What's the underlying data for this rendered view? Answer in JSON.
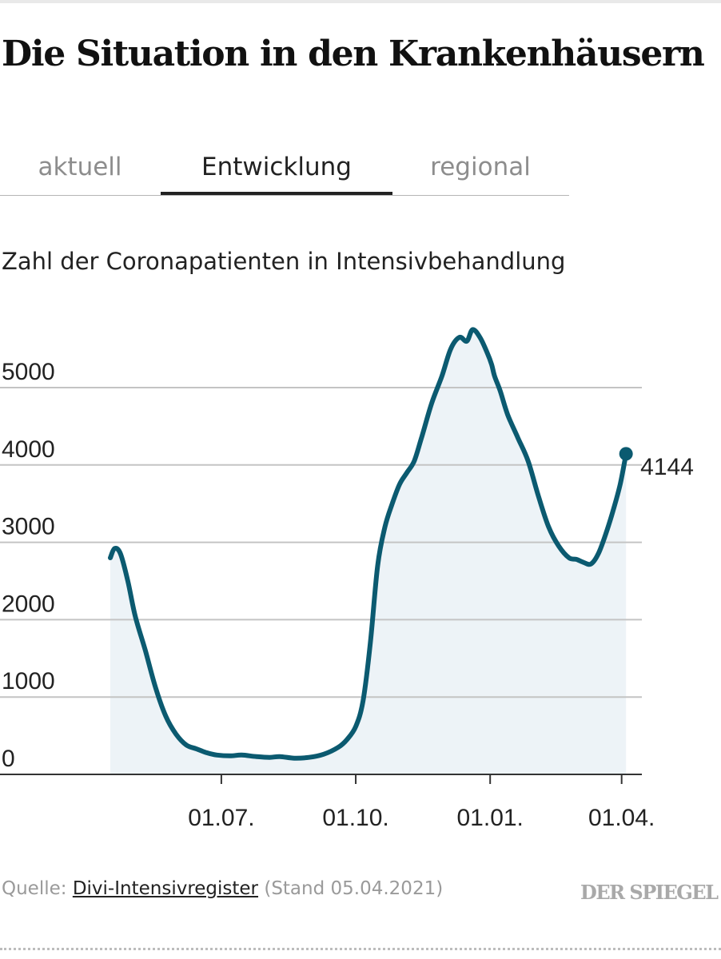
{
  "header": {
    "title": "Die Situation in den Krankenhäusern"
  },
  "tabs": [
    {
      "label": "aktuell",
      "active": false
    },
    {
      "label": "Entwicklung",
      "active": true
    },
    {
      "label": "regional",
      "active": false
    }
  ],
  "chart_data": {
    "type": "area",
    "title": "Zahl der Coronapatienten in Intensivbehandlung",
    "xlabel": "",
    "ylabel": "",
    "ylim": [
      0,
      6000
    ],
    "yticks": [
      0,
      1000,
      2000,
      3000,
      4000,
      5000
    ],
    "ytick_labels": [
      "0",
      "1000",
      "2000",
      "3000",
      "4000",
      "5000"
    ],
    "xlim": [
      "2020-04-16",
      "2021-04-05"
    ],
    "xticks": [
      "2020-07-01",
      "2020-10-01",
      "2021-01-01",
      "2021-04-01"
    ],
    "xtick_labels": [
      "01.07.",
      "01.10.",
      "01.01.",
      "01.04."
    ],
    "grid": true,
    "legend": false,
    "line_color": "#0b5a70",
    "fill_color": "#edf3f7",
    "x": [
      "2020-04-16",
      "2020-04-19",
      "2020-04-23",
      "2020-04-28",
      "2020-05-03",
      "2020-05-10",
      "2020-05-17",
      "2020-05-24",
      "2020-05-31",
      "2020-06-07",
      "2020-06-14",
      "2020-06-21",
      "2020-06-28",
      "2020-07-07",
      "2020-07-15",
      "2020-07-25",
      "2020-08-03",
      "2020-08-10",
      "2020-08-20",
      "2020-08-30",
      "2020-09-09",
      "2020-09-19",
      "2020-09-25",
      "2020-10-01",
      "2020-10-06",
      "2020-10-11",
      "2020-10-16",
      "2020-10-21",
      "2020-10-26",
      "2020-10-31",
      "2020-11-05",
      "2020-11-10",
      "2020-11-15",
      "2020-11-22",
      "2020-11-29",
      "2020-12-05",
      "2020-12-11",
      "2020-12-16",
      "2020-12-20",
      "2020-12-25",
      "2020-12-30",
      "2021-01-02",
      "2021-01-04",
      "2021-01-08",
      "2021-01-13",
      "2021-01-20",
      "2021-01-27",
      "2021-02-03",
      "2021-02-10",
      "2021-02-17",
      "2021-02-24",
      "2021-03-01",
      "2021-03-06",
      "2021-03-11",
      "2021-03-16",
      "2021-03-21",
      "2021-03-26",
      "2021-03-31",
      "2021-04-04"
    ],
    "values": [
      2800,
      2920,
      2850,
      2500,
      2050,
      1600,
      1120,
      750,
      520,
      380,
      330,
      280,
      250,
      240,
      250,
      230,
      220,
      230,
      210,
      220,
      260,
      350,
      450,
      620,
      950,
      1700,
      2700,
      3200,
      3500,
      3750,
      3900,
      4050,
      4350,
      4800,
      5150,
      5500,
      5650,
      5600,
      5750,
      5650,
      5450,
      5300,
      5150,
      4950,
      4650,
      4350,
      4050,
      3600,
      3200,
      2950,
      2800,
      2780,
      2740,
      2720,
      2850,
      3100,
      3400,
      3750,
      4144
    ],
    "last_value_label": "4144"
  },
  "footer": {
    "source_label": "Quelle:",
    "source_name": "Divi-Intensivregister",
    "stand_text": "(Stand 05.04.2021)",
    "brand": "DER SPIEGEL"
  }
}
